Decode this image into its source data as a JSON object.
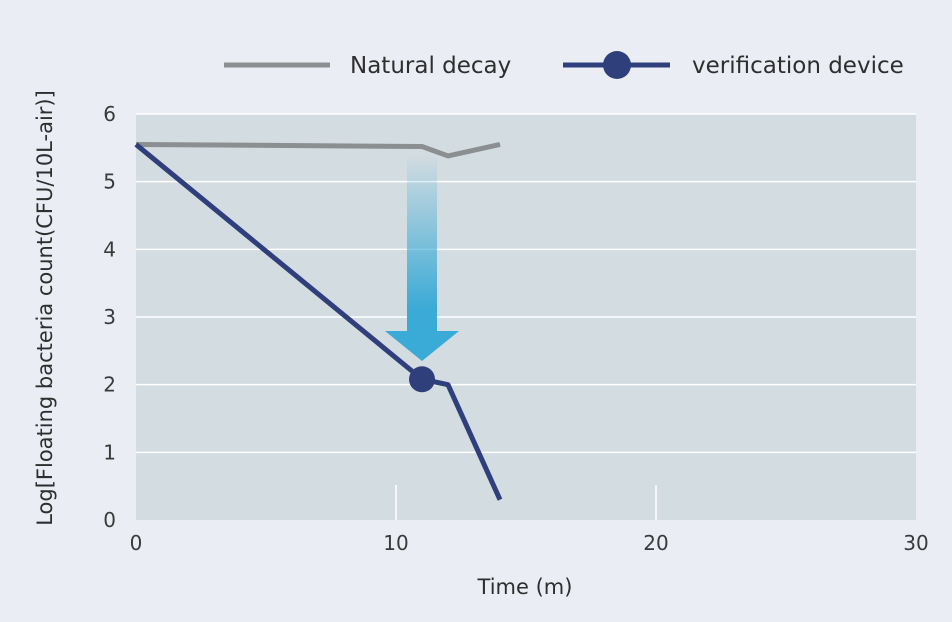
{
  "chart_data": {
    "type": "line",
    "xlabel": "Time (m)",
    "ylabel": "Log[Floating bacteria count(CFU/10L-air)]",
    "xlim": [
      0,
      30
    ],
    "ylim": [
      0,
      6
    ],
    "x_ticks": [
      0,
      10,
      20,
      30
    ],
    "y_ticks": [
      0,
      1,
      2,
      3,
      4,
      5,
      6
    ],
    "grid": "horizontal",
    "legend_position": "top-right",
    "plot_background": "#d3dce0",
    "series": [
      {
        "name": "Natural decay",
        "color": "#8c8f91",
        "marker": "none",
        "x": [
          0,
          11,
          12,
          14
        ],
        "y": [
          5.55,
          5.52,
          5.38,
          5.55
        ]
      },
      {
        "name": "verification device",
        "color": "#2f3f7c",
        "marker": "circle",
        "marker_at_x": 11,
        "x": [
          0,
          11,
          12,
          14
        ],
        "y": [
          5.55,
          2.08,
          2.0,
          0.3
        ]
      }
    ],
    "annotation": {
      "type": "down-arrow",
      "color": "#3aaad6",
      "x": 11,
      "y_from": 5.4,
      "y_to": 2.35
    }
  }
}
